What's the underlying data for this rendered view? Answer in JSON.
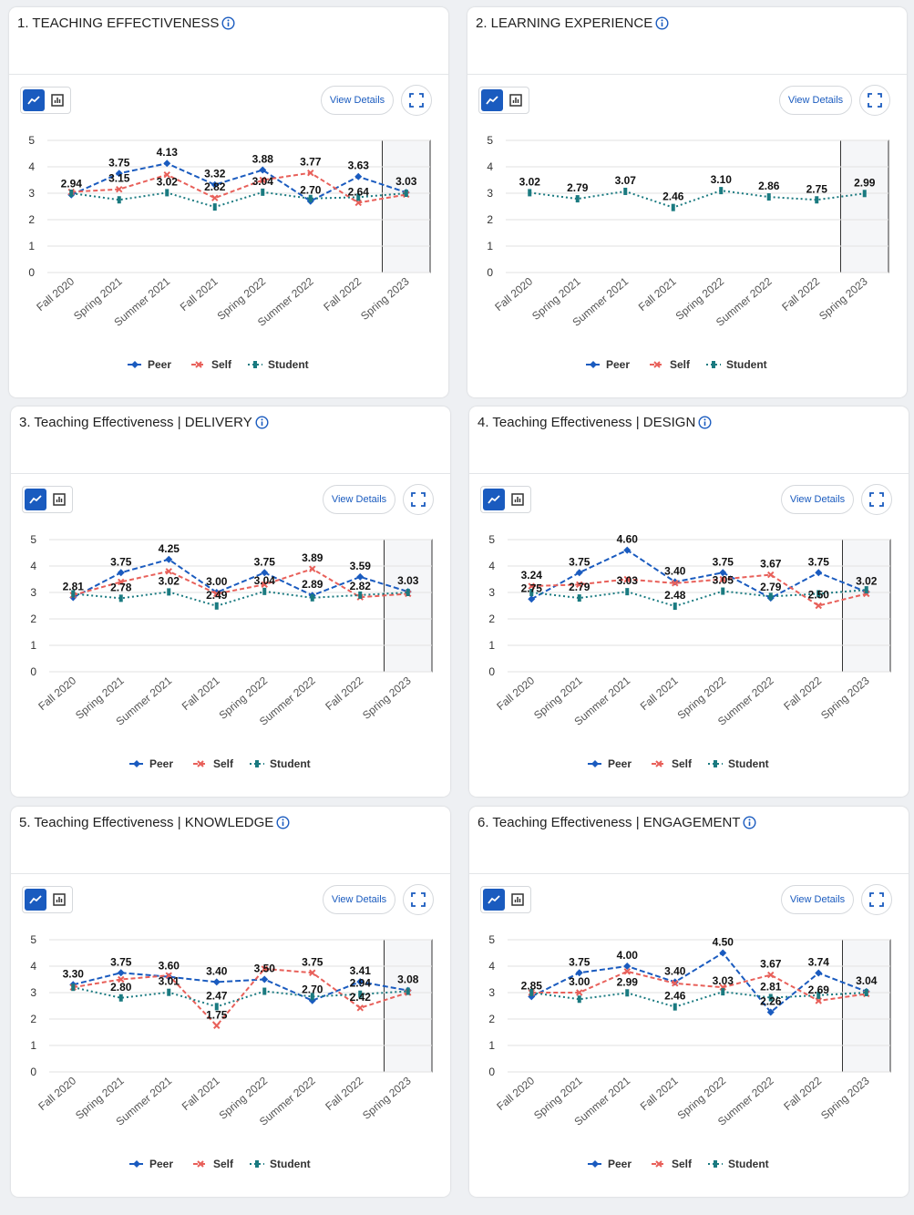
{
  "view_details_label": "View Details",
  "chart_data": [
    {
      "type": "line",
      "title": "1. TEACHING EFFECTIVENESS",
      "categories": [
        "Fall 2020",
        "Spring 2021",
        "Summer 2021",
        "Fall 2021",
        "Spring 2022",
        "Summer 2022",
        "Fall 2022",
        "Spring 2023"
      ],
      "ylim": [
        0,
        5
      ],
      "yticks": [
        0,
        1,
        2,
        3,
        4,
        5
      ],
      "grid": true,
      "series": [
        {
          "name": "Peer",
          "color": "#1a5bbf",
          "values": [
            2.94,
            3.75,
            4.13,
            3.32,
            3.88,
            2.7,
            3.63,
            3.03
          ],
          "value_labels": [
            "2.94",
            "3.75",
            "4.13",
            "3.32",
            "3.88",
            "2.70",
            "3.63",
            "3.03"
          ]
        },
        {
          "name": "Self",
          "color": "#e8605a",
          "values": [
            3.05,
            3.15,
            3.7,
            2.82,
            3.5,
            3.77,
            2.64,
            2.95
          ],
          "value_labels": [
            null,
            "3.15",
            null,
            "2.82",
            null,
            "3.77",
            "2.64",
            null
          ]
        },
        {
          "name": "Student",
          "color": "#1a7a80",
          "values": [
            3.0,
            2.75,
            3.02,
            2.48,
            3.04,
            2.8,
            2.85,
            3.0
          ],
          "value_labels": [
            null,
            null,
            "3.02",
            null,
            "3.04",
            null,
            null,
            null
          ]
        }
      ]
    },
    {
      "type": "line",
      "title": "2. LEARNING EXPERIENCE",
      "categories": [
        "Fall 2020",
        "Spring 2021",
        "Summer 2021",
        "Fall 2021",
        "Spring 2022",
        "Summer 2022",
        "Fall 2022",
        "Spring 2023"
      ],
      "ylim": [
        0,
        5
      ],
      "yticks": [
        0,
        1,
        2,
        3,
        4,
        5
      ],
      "grid": true,
      "series": [
        {
          "name": "Peer",
          "color": "#1a5bbf",
          "values": [
            null,
            null,
            null,
            null,
            null,
            null,
            null,
            null
          ],
          "value_labels": [
            null,
            null,
            null,
            null,
            null,
            null,
            null,
            null
          ]
        },
        {
          "name": "Self",
          "color": "#e8605a",
          "values": [
            null,
            null,
            null,
            null,
            null,
            null,
            null,
            null
          ],
          "value_labels": [
            null,
            null,
            null,
            null,
            null,
            null,
            null,
            null
          ]
        },
        {
          "name": "Student",
          "color": "#1a7a80",
          "values": [
            3.02,
            2.79,
            3.07,
            2.46,
            3.1,
            2.86,
            2.75,
            2.99
          ],
          "value_labels": [
            "3.02",
            "2.79",
            "3.07",
            "2.46",
            "3.10",
            "2.86",
            "2.75",
            "2.99"
          ]
        }
      ]
    },
    {
      "type": "line",
      "title": "3. Teaching Effectiveness | DELIVERY",
      "categories": [
        "Fall 2020",
        "Spring 2021",
        "Summer 2021",
        "Fall 2021",
        "Spring 2022",
        "Summer 2022",
        "Fall 2022",
        "Spring 2023"
      ],
      "ylim": [
        0,
        5
      ],
      "yticks": [
        0,
        1,
        2,
        3,
        4,
        5
      ],
      "grid": true,
      "series": [
        {
          "name": "Peer",
          "color": "#1a5bbf",
          "values": [
            2.81,
            3.75,
            4.25,
            3.0,
            3.75,
            2.89,
            3.59,
            3.03
          ],
          "value_labels": [
            "2.81",
            "3.75",
            "4.25",
            "3.00",
            "3.75",
            "2.89",
            "3.59",
            "3.03"
          ]
        },
        {
          "name": "Self",
          "color": "#e8605a",
          "values": [
            2.9,
            3.4,
            3.8,
            2.95,
            3.3,
            3.89,
            2.82,
            2.95
          ],
          "value_labels": [
            null,
            null,
            null,
            null,
            null,
            "3.89",
            "2.82",
            null
          ]
        },
        {
          "name": "Student",
          "color": "#1a7a80",
          "values": [
            2.95,
            2.78,
            3.02,
            2.49,
            3.04,
            2.8,
            2.9,
            3.0
          ],
          "value_labels": [
            null,
            "2.78",
            "3.02",
            "2.49",
            "3.04",
            null,
            null,
            null
          ]
        }
      ]
    },
    {
      "type": "line",
      "title": "4. Teaching Effectiveness | DESIGN",
      "categories": [
        "Fall 2020",
        "Spring 2021",
        "Summer 2021",
        "Fall 2021",
        "Spring 2022",
        "Summer 2022",
        "Fall 2022",
        "Spring 2023"
      ],
      "ylim": [
        0,
        5
      ],
      "yticks": [
        0,
        1,
        2,
        3,
        4,
        5
      ],
      "grid": true,
      "series": [
        {
          "name": "Peer",
          "color": "#1a5bbf",
          "values": [
            2.75,
            3.75,
            4.6,
            3.4,
            3.75,
            2.79,
            3.75,
            3.02
          ],
          "value_labels": [
            "2.75",
            "3.75",
            "4.60",
            "3.40",
            "3.75",
            "2.79",
            "3.75",
            "3.02"
          ]
        },
        {
          "name": "Self",
          "color": "#e8605a",
          "values": [
            3.24,
            3.3,
            3.5,
            3.35,
            3.5,
            3.67,
            2.5,
            2.95
          ],
          "value_labels": [
            "3.24",
            null,
            null,
            null,
            null,
            "3.67",
            "2.50",
            null
          ]
        },
        {
          "name": "Student",
          "color": "#1a7a80",
          "values": [
            3.0,
            2.79,
            3.03,
            2.48,
            3.05,
            2.85,
            2.95,
            3.1
          ],
          "value_labels": [
            null,
            "2.79",
            "3.03",
            "2.48",
            "3.05",
            null,
            null,
            null
          ]
        }
      ]
    },
    {
      "type": "line",
      "title": "5. Teaching Effectiveness | KNOWLEDGE",
      "categories": [
        "Fall 2020",
        "Spring 2021",
        "Summer 2021",
        "Fall 2021",
        "Spring 2022",
        "Summer 2022",
        "Fall 2022",
        "Spring 2023"
      ],
      "ylim": [
        0,
        5
      ],
      "yticks": [
        0,
        1,
        2,
        3,
        4,
        5
      ],
      "grid": true,
      "series": [
        {
          "name": "Peer",
          "color": "#1a5bbf",
          "values": [
            3.3,
            3.75,
            3.6,
            3.4,
            3.5,
            2.7,
            3.41,
            3.08
          ],
          "value_labels": [
            "3.30",
            "3.75",
            "3.60",
            "3.40",
            "3.50",
            "2.70",
            "3.41",
            "3.08"
          ]
        },
        {
          "name": "Self",
          "color": "#e8605a",
          "values": [
            3.2,
            3.5,
            3.65,
            1.75,
            3.9,
            3.75,
            2.42,
            3.0
          ],
          "value_labels": [
            null,
            null,
            null,
            "1.75",
            null,
            "3.75",
            "2.42",
            null
          ]
        },
        {
          "name": "Student",
          "color": "#1a7a80",
          "values": [
            3.2,
            2.8,
            3.01,
            2.47,
            3.05,
            2.85,
            2.94,
            3.05
          ],
          "value_labels": [
            null,
            "2.80",
            "3.01",
            "2.47",
            null,
            null,
            "2.94",
            null
          ]
        }
      ]
    },
    {
      "type": "line",
      "title": "6. Teaching Effectiveness | ENGAGEMENT",
      "categories": [
        "Fall 2020",
        "Spring 2021",
        "Summer 2021",
        "Fall 2021",
        "Spring 2022",
        "Summer 2022",
        "Fall 2022",
        "Spring 2023"
      ],
      "ylim": [
        0,
        5
      ],
      "yticks": [
        0,
        1,
        2,
        3,
        4,
        5
      ],
      "grid": true,
      "series": [
        {
          "name": "Peer",
          "color": "#1a5bbf",
          "values": [
            2.85,
            3.75,
            4.0,
            3.4,
            4.5,
            2.26,
            3.74,
            3.04
          ],
          "value_labels": [
            "2.85",
            "3.75",
            "4.00",
            "3.40",
            "4.50",
            "2.26",
            "3.74",
            "3.04"
          ]
        },
        {
          "name": "Self",
          "color": "#e8605a",
          "values": [
            3.0,
            3.0,
            3.8,
            3.35,
            3.2,
            3.67,
            2.69,
            2.95
          ],
          "value_labels": [
            null,
            "3.00",
            null,
            null,
            null,
            "3.67",
            "2.69",
            null
          ]
        },
        {
          "name": "Student",
          "color": "#1a7a80",
          "values": [
            3.0,
            2.75,
            2.99,
            2.46,
            3.03,
            2.81,
            2.9,
            3.0
          ],
          "value_labels": [
            null,
            null,
            "2.99",
            "2.46",
            "3.03",
            "2.81",
            null,
            null
          ]
        }
      ]
    }
  ]
}
